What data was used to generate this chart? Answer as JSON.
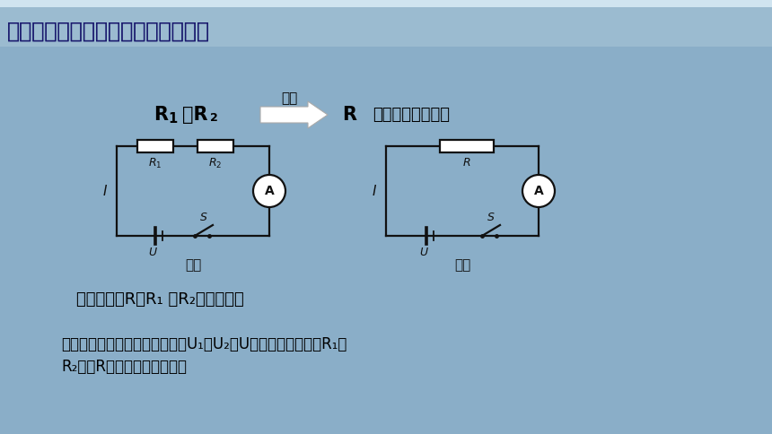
{
  "title": "探究串联电路总电阻与分电阻的关系",
  "title_color": "#1a1a6e",
  "bg_color": "#8AAEC8",
  "title_bg_color": "#9BBBD0",
  "top_strip_color": "#D0E4F0",
  "equiv_label": "等效",
  "equiv_resistor_label": "等效电阻或总电阻",
  "fig1_label": "甲图",
  "fig2_label": "乙图",
  "question_text": "你能推导出R与R₁ 、R₂的关系吗？",
  "hint_line1": "（提示：利用欧姆定律分别写出U₁、U₂和U的表达式，或写出R₁、",
  "hint_line2": "R₂、和R的表达式进行证明）",
  "circuit_color": "#111111",
  "text_color": "#111111"
}
